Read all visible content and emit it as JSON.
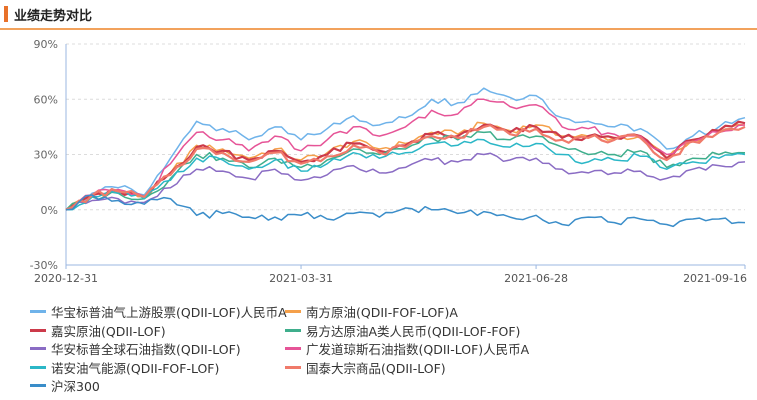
{
  "section_title": "业绩走势对比",
  "chart_data": {
    "type": "line",
    "ylim": [
      -30,
      90
    ],
    "yticks": [
      "90%",
      "60%",
      "30%",
      "0%",
      "-30%"
    ],
    "ytick_values": [
      90,
      60,
      30,
      0,
      -30
    ],
    "xticks": [
      "2020-12-31",
      "2021-03-31",
      "2021-06-28",
      "2021-09-16"
    ],
    "grid": "horizontal dashed",
    "legend_placement": "bottom",
    "x_index": [
      0,
      10,
      20,
      30,
      40,
      50,
      60,
      70,
      80,
      90,
      100,
      110,
      120,
      130,
      140,
      150,
      160,
      170,
      180,
      190,
      200,
      210,
      220,
      230,
      240,
      250,
      260
    ],
    "x_dates": [
      "2020-12-31",
      "",
      "",
      "",
      "",
      "",
      "",
      "",
      "",
      "2021-03-31",
      "",
      "",
      "",
      "",
      "",
      "",
      "",
      "",
      "2021-06-28",
      "",
      "",
      "",
      "",
      "",
      "",
      "",
      "2021-09-16"
    ],
    "series": [
      {
        "name": "华宝标普油气上游股票(QDII-LOF)人民币A",
        "color": "#6fb3ea",
        "values": [
          0,
          9,
          12,
          8,
          28,
          48,
          44,
          38,
          45,
          38,
          44,
          51,
          46,
          50,
          60,
          58,
          66,
          61,
          62,
          50,
          48,
          45,
          44,
          33,
          40,
          45,
          50
        ]
      },
      {
        "name": "南方原油(QDII-FOF-LOF)A",
        "color": "#f5a04a",
        "values": [
          0,
          8,
          10,
          7,
          20,
          35,
          33,
          28,
          33,
          27,
          31,
          37,
          33,
          36,
          42,
          41,
          47,
          43,
          46,
          40,
          40,
          39,
          40,
          28,
          38,
          43,
          46
        ]
      },
      {
        "name": "嘉实原油(QDII-LOF)",
        "color": "#cc3a4a",
        "values": [
          0,
          8,
          10,
          7,
          20,
          34,
          32,
          27,
          32,
          26,
          30,
          36,
          32,
          35,
          41,
          40,
          46,
          42,
          45,
          39,
          40,
          39,
          40,
          28,
          38,
          43,
          47
        ]
      },
      {
        "name": "易方达原油A类人民币(QDII-LOF-FOF)",
        "color": "#3fae8c",
        "values": [
          0,
          7,
          9,
          6,
          17,
          30,
          28,
          23,
          28,
          23,
          27,
          33,
          30,
          33,
          39,
          38,
          42,
          38,
          40,
          34,
          30,
          30,
          32,
          23,
          28,
          30,
          31
        ]
      },
      {
        "name": "华安标普全球石油指数(QDII-LOF)",
        "color": "#8a6cc4",
        "values": [
          0,
          5,
          6,
          4,
          12,
          22,
          21,
          17,
          22,
          16,
          19,
          24,
          20,
          23,
          27,
          26,
          30,
          27,
          28,
          22,
          20,
          20,
          21,
          17,
          22,
          24,
          26
        ]
      },
      {
        "name": "广发道琼斯石油指数(QDII-LOF)人民币A",
        "color": "#e65497",
        "values": [
          0,
          8,
          11,
          7,
          25,
          42,
          38,
          32,
          40,
          32,
          38,
          45,
          40,
          45,
          54,
          52,
          60,
          56,
          57,
          45,
          44,
          41,
          40,
          30,
          37,
          42,
          46
        ]
      },
      {
        "name": "诺安油气能源(QDII-FOF-LOF)",
        "color": "#2bb7c7",
        "values": [
          0,
          7,
          9,
          6,
          16,
          28,
          27,
          22,
          27,
          21,
          25,
          31,
          28,
          31,
          36,
          35,
          38,
          34,
          36,
          30,
          26,
          27,
          29,
          22,
          26,
          28,
          30
        ]
      },
      {
        "name": "国泰大宗商品(QDII-LOF)",
        "color": "#f07a6a",
        "values": [
          0,
          8,
          10,
          7,
          19,
          33,
          31,
          26,
          31,
          25,
          29,
          35,
          31,
          34,
          40,
          39,
          45,
          41,
          44,
          38,
          39,
          38,
          39,
          27,
          37,
          42,
          45
        ]
      },
      {
        "name": "沪深300",
        "color": "#3a8dc9",
        "values": [
          0,
          8,
          5,
          3,
          6,
          -3,
          -2,
          -4,
          -4,
          -3,
          -5,
          -2,
          -4,
          1,
          0,
          -2,
          -1,
          -4,
          -3,
          -8,
          -4,
          -7,
          -5,
          -8,
          -5,
          -5,
          -7
        ]
      }
    ]
  }
}
